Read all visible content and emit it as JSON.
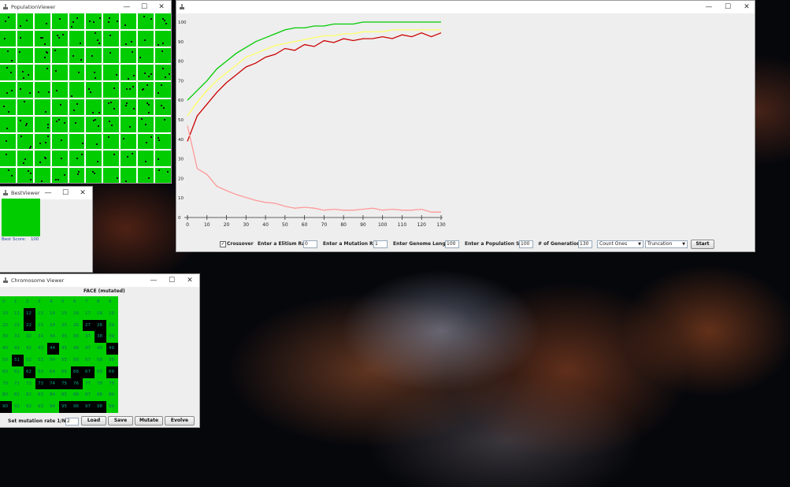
{
  "population_viewer": {
    "title": "PopulationViewer"
  },
  "best_viewer": {
    "title": "BestViewer",
    "score_label": "Best Score:",
    "score_value": "100"
  },
  "chromosome_viewer": {
    "title": "Chromosome Viewer",
    "face_label": "FACE (mutated)",
    "black_cells": [
      12,
      22,
      27,
      28,
      38,
      44,
      49,
      51,
      62,
      66,
      67,
      69,
      73,
      74,
      75,
      76,
      90,
      95,
      96,
      97,
      98
    ],
    "mutation_label": "Set mutation rate 1/N | N=",
    "mutation_value": "2",
    "buttons": {
      "load": "Load",
      "save": "Save",
      "mutate": "Mutate",
      "evolve": "Evolve"
    }
  },
  "main_window": {
    "crossover_label": "Crossover",
    "crossover_checked": true,
    "elitism_label": "Enter a Elitism Rate:",
    "elitism_value": "0",
    "mutation_rate_label": "Enter a Mutation Rate:",
    "mutation_rate_value": "1",
    "genome_length_label": "Enter Genome Length:",
    "genome_length_value": "100",
    "population_size_label": "Enter a Population Size:",
    "population_size_value": "100",
    "generations_label": "# of Generations:",
    "generations_value": "130",
    "fitness_select": "Count Ones",
    "selection_select": "Truncation",
    "start_button": "Start"
  },
  "window_controls": {
    "minimize": "—",
    "maximize": "☐",
    "close": "✕"
  },
  "colors": {
    "accent_green": "#00cc00",
    "max_line": "#00cc00",
    "avg_line": "#ffff66",
    "min_line": "#cc0000",
    "diversity_line": "#ff9a9a"
  },
  "chart_data": {
    "type": "line",
    "xlim": [
      0,
      130
    ],
    "ylim": [
      0,
      100
    ],
    "x_ticks": [
      "0",
      "10",
      "20",
      "30",
      "40",
      "50",
      "60",
      "70",
      "80",
      "90",
      "100",
      "110",
      "120",
      "130"
    ],
    "y_ticks": [
      "0",
      "10",
      "20",
      "30",
      "40",
      "50",
      "60",
      "70",
      "80",
      "90",
      "100"
    ],
    "x": [
      0,
      5,
      10,
      15,
      20,
      25,
      30,
      35,
      40,
      45,
      50,
      55,
      60,
      65,
      70,
      75,
      80,
      85,
      90,
      95,
      100,
      105,
      110,
      115,
      120,
      125,
      130
    ],
    "series": [
      {
        "color": "#00cc00",
        "values": [
          60,
          65,
          70,
          76,
          80,
          84,
          87,
          90,
          92,
          94,
          96,
          97,
          97,
          98,
          98,
          99,
          99,
          99,
          100,
          100,
          100,
          100,
          100,
          100,
          100,
          100,
          100
        ]
      },
      {
        "color": "#ffff66",
        "values": [
          52,
          59,
          65,
          70,
          74,
          78,
          82,
          84,
          86,
          88,
          89,
          90,
          91,
          92,
          93,
          93,
          94,
          94,
          95,
          95,
          95,
          96,
          96,
          96,
          96,
          96,
          96
        ]
      },
      {
        "color": "#cc0000",
        "values": [
          39,
          52,
          58,
          64,
          69,
          73,
          77,
          79,
          82,
          84,
          86,
          86,
          88,
          88,
          90,
          90,
          91,
          91,
          91,
          92,
          92,
          92,
          93,
          93,
          94,
          93,
          94
        ]
      },
      {
        "color": "#ff9a9a",
        "values": [
          47,
          25,
          22,
          16,
          14,
          12,
          10,
          9,
          8,
          7,
          6,
          5,
          5,
          5,
          4,
          4,
          4,
          4,
          4,
          5,
          4,
          4,
          4,
          4,
          4,
          3,
          3
        ]
      }
    ]
  }
}
